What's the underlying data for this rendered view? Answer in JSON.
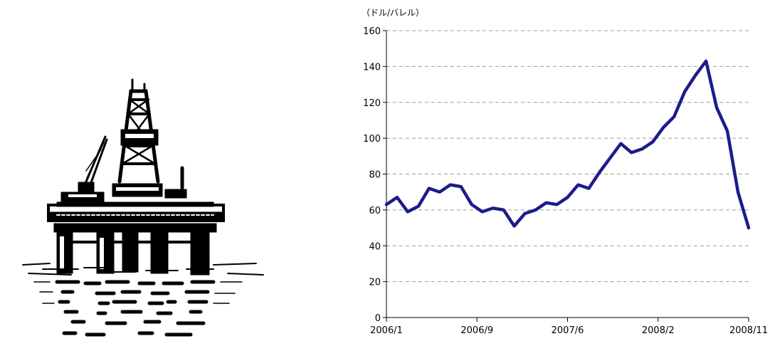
{
  "illustration": {
    "icon": "oil-rig-icon"
  },
  "chart_data": {
    "type": "line",
    "title": "",
    "xlabel": "",
    "ylabel": "",
    "unit_label": "（ドル/バレル）",
    "ylim": [
      0,
      160
    ],
    "yticks": [
      "0",
      "20",
      "40",
      "60",
      "80",
      "100",
      "120",
      "140",
      "160"
    ],
    "xticks": [
      "2006/1",
      "2006/9",
      "2007/6",
      "2008/2",
      "2008/11"
    ],
    "grid": "horizontal-dashed",
    "legend": "none",
    "color": "#1c1c8c",
    "series": [
      {
        "x": [
          "2006/1",
          "2006/2",
          "2006/3",
          "2006/4",
          "2006/5",
          "2006/6",
          "2006/7",
          "2006/8",
          "2006/9",
          "2006/10",
          "2006/11",
          "2006/12",
          "2007/1",
          "2007/2",
          "2007/3",
          "2007/4",
          "2007/5",
          "2007/6",
          "2007/7",
          "2007/8",
          "2007/9",
          "2007/10",
          "2007/11",
          "2007/12",
          "2008/1",
          "2008/2",
          "2008/3",
          "2008/4",
          "2008/5",
          "2008/6",
          "2008/7",
          "2008/8",
          "2008/9",
          "2008/10",
          "2008/11"
        ],
        "values": [
          63,
          67,
          59,
          62,
          72,
          70,
          74,
          73,
          63,
          59,
          61,
          60,
          51,
          58,
          60,
          64,
          63,
          67,
          74,
          72,
          81,
          89,
          97,
          92,
          94,
          98,
          106,
          112,
          126,
          135,
          143,
          117,
          104,
          70,
          50
        ]
      }
    ]
  }
}
